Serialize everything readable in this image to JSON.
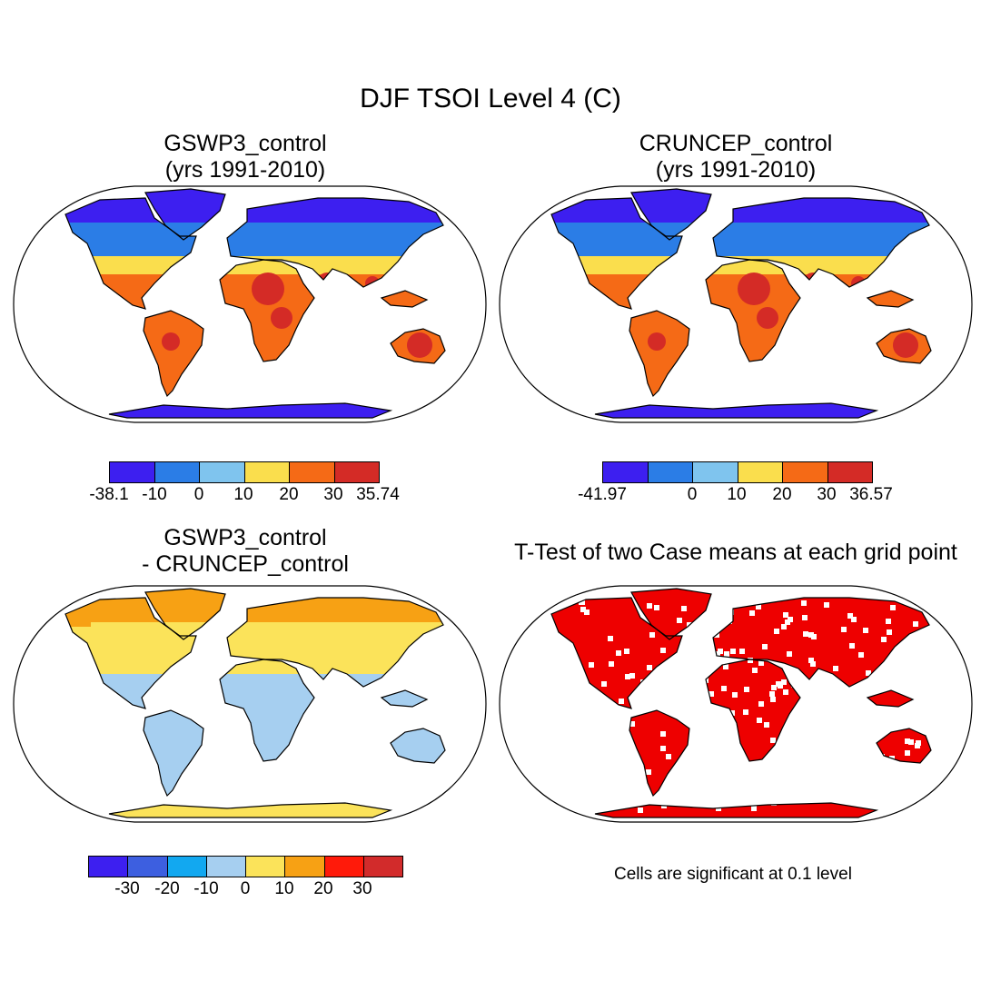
{
  "title": "DJF TSOI Level 4 (C)",
  "panels": [
    {
      "title_line1": "GSWP3_control",
      "title_line2": "(yrs 1991-2010)",
      "colorbar": {
        "colors": [
          "#3d1ff0",
          "#2b7de6",
          "#7fc4ee",
          "#fade4d",
          "#f56a16",
          "#d42b26"
        ],
        "labels": [
          "-38.1",
          "-10",
          "0",
          "10",
          "20",
          "30",
          "35.74"
        ]
      }
    },
    {
      "title_line1": "CRUNCEP_control",
      "title_line2": "(yrs 1991-2010)",
      "colorbar": {
        "colors": [
          "#3d1ff0",
          "#2b7de6",
          "#7fc4ee",
          "#fade4d",
          "#f56a16",
          "#d42b26"
        ],
        "labels": [
          "-41.97",
          "",
          "0",
          "10",
          "20",
          "30",
          "36.57"
        ]
      }
    },
    {
      "title_line1": "GSWP3_control",
      "title_line2": "- CRUNCEP_control",
      "colorbar": {
        "colors": [
          "#3d1ff0",
          "#3d5fe0",
          "#12a8f0",
          "#a6cff0",
          "#fbe35a",
          "#f7a114",
          "#ff1a0a",
          "#d22b2b"
        ],
        "labels": [
          "-30",
          "-20",
          "-10",
          "0",
          "10",
          "20",
          "30"
        ]
      }
    },
    {
      "title_line1": "T-Test of two Case means at each grid point",
      "note": "Cells are significant at 0.1 level"
    }
  ],
  "map_fill": {
    "panel1": {
      "north": "#2b7de6",
      "arctic": "#3d1ff0",
      "subtropic": "#fade4d",
      "tropic": "#f56a16",
      "hot": "#d42b26"
    },
    "panel2": {
      "north": "#2b7de6",
      "arctic": "#3d1ff0",
      "subtropic": "#fade4d",
      "tropic": "#f56a16",
      "hot": "#d42b26"
    },
    "panel3": {
      "north": "#fbe35a",
      "arctic": "#f7a114",
      "subtropic": "#fbe35a",
      "tropic": "#a6cff0",
      "hot": "#a6cff0"
    },
    "panel4": {
      "north": "#ee0000",
      "arctic": "#ee0000",
      "subtropic": "#ee0000",
      "tropic": "#ee0000",
      "hot": "#ee0000"
    }
  }
}
